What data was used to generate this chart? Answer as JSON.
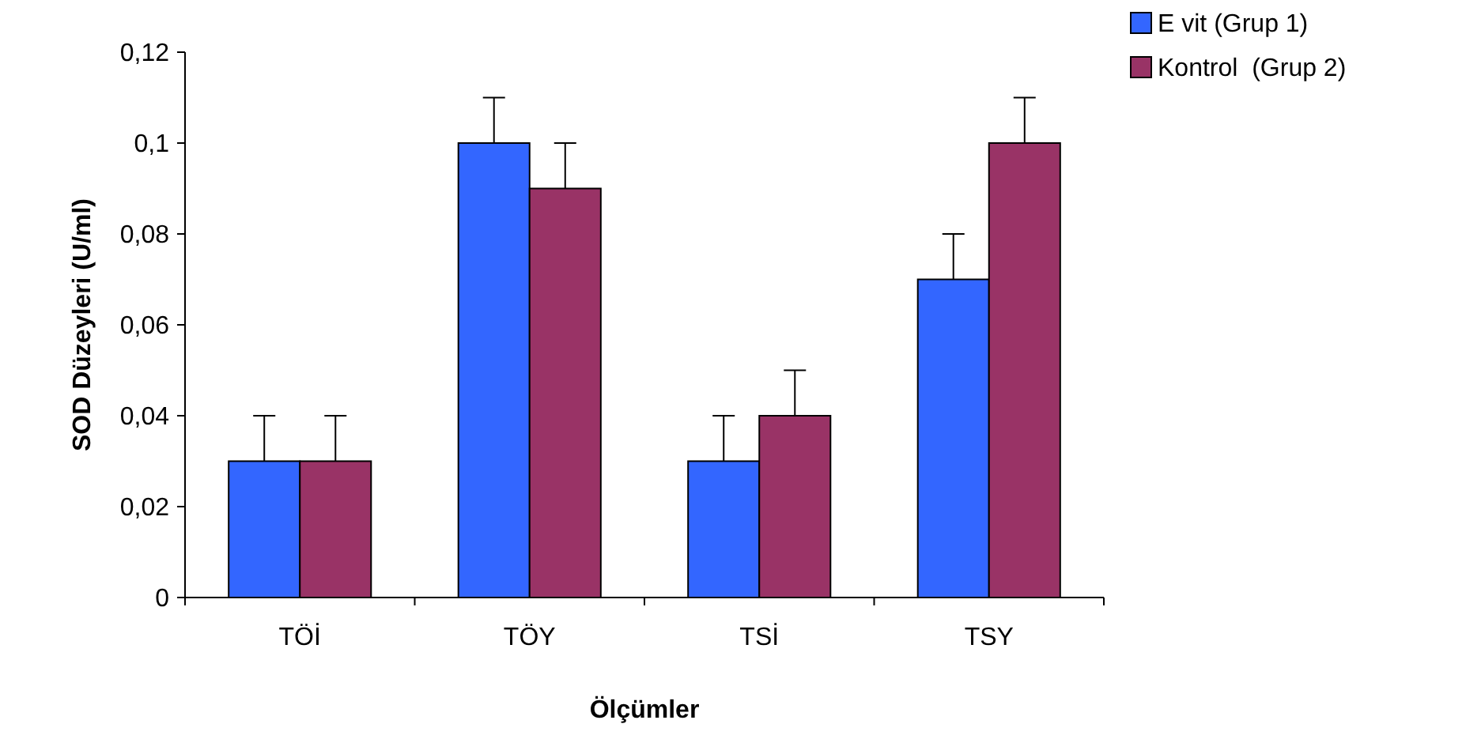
{
  "chart_data": {
    "type": "bar",
    "xlabel": "Ölçümler",
    "ylabel": "SOD Düzeyleri (U/ml)",
    "categories": [
      "TÖİ",
      "TÖY",
      "TSİ",
      "TSY"
    ],
    "series": [
      {
        "name": "E vit (Grup 1)",
        "color": "#3366ff",
        "values": [
          0.03,
          0.1,
          0.03,
          0.07
        ],
        "errors": [
          [
            0.03,
            0.04
          ],
          [
            0.1,
            0.11
          ],
          [
            0.03,
            0.04
          ],
          [
            0.07,
            0.08
          ]
        ]
      },
      {
        "name": "Kontrol  (Grup 2)",
        "color": "#993366",
        "values": [
          0.03,
          0.09,
          0.04,
          0.1
        ],
        "errors": [
          [
            0.03,
            0.04
          ],
          [
            0.09,
            0.1
          ],
          [
            0.04,
            0.05
          ],
          [
            0.1,
            0.11
          ]
        ]
      }
    ],
    "ylim": [
      0,
      0.12
    ],
    "yticks": [
      {
        "value": 0,
        "label": "0"
      },
      {
        "value": 0.02,
        "label": "0,02"
      },
      {
        "value": 0.04,
        "label": "0,04"
      },
      {
        "value": 0.06,
        "label": "0,06"
      },
      {
        "value": 0.08,
        "label": "0,08"
      },
      {
        "value": 0.1,
        "label": "0,1"
      },
      {
        "value": 0.12,
        "label": "0,12"
      }
    ],
    "legend": "top right",
    "grid": false
  }
}
